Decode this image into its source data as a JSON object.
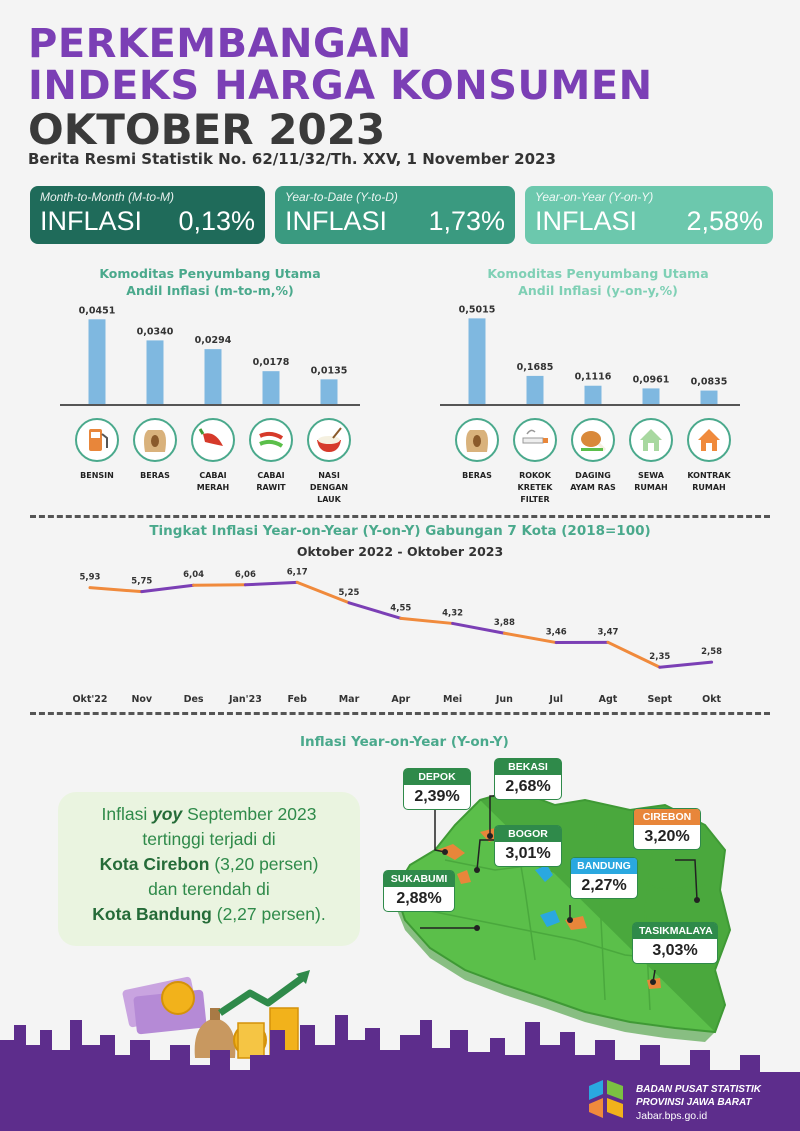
{
  "header": {
    "line1": "PERKEMBANGAN",
    "line2": "INDEKS HARGA KONSUMEN",
    "line3": "OKTOBER 2023",
    "subtitle": "Berita Resmi Statistik No. 62/11/32/Th. XXV, 1 November 2023"
  },
  "cards": [
    {
      "caption": "Month-to-Month (M-to-M)",
      "label": "INFLASI",
      "value": "0,13%",
      "color": "#1f6b5a"
    },
    {
      "caption": "Year-to-Date (Y-to-D)",
      "label": "INFLASI",
      "value": "1,73%",
      "color": "#3a9a80"
    },
    {
      "caption": "Year-on-Year (Y-on-Y)",
      "label": "INFLASI",
      "value": "2,58%",
      "color": "#6cc8ad"
    }
  ],
  "bar_left": {
    "title_line1": "Komoditas Penyumbang Utama",
    "title_line2": "Andil Inflasi (m-to-m,%)",
    "items": [
      {
        "label": [
          "BENSIN"
        ],
        "value_label": "0,0451",
        "icon": "fuel-pump-icon"
      },
      {
        "label": [
          "BERAS"
        ],
        "value_label": "0,0340",
        "icon": "rice-sack-icon"
      },
      {
        "label": [
          "CABAI",
          "MERAH"
        ],
        "value_label": "0,0294",
        "icon": "red-chili-icon"
      },
      {
        "label": [
          "CABAI",
          "RAWIT"
        ],
        "value_label": "0,0178",
        "icon": "bird-chili-icon"
      },
      {
        "label": [
          "NASI",
          "DENGAN",
          "LAUK"
        ],
        "value_label": "0,0135",
        "icon": "rice-bowl-icon"
      }
    ]
  },
  "bar_right": {
    "title_line1": "Komoditas Penyumbang Utama",
    "title_line2": "Andil Inflasi (y-on-y,%)",
    "items": [
      {
        "label": [
          "BERAS"
        ],
        "value_label": "0,5015",
        "icon": "rice-sack-icon"
      },
      {
        "label": [
          "ROKOK",
          "KRETEK",
          "FILTER"
        ],
        "value_label": "0,1685",
        "icon": "cigarette-icon"
      },
      {
        "label": [
          "DAGING",
          "AYAM RAS"
        ],
        "value_label": "0,1116",
        "icon": "chicken-meat-icon"
      },
      {
        "label": [
          "SEWA",
          "RUMAH"
        ],
        "value_label": "0,0961",
        "icon": "house-rent-icon"
      },
      {
        "label": [
          "KONTRAK",
          "RUMAH"
        ],
        "value_label": "0,0835",
        "icon": "house-contract-icon"
      }
    ]
  },
  "line_section": {
    "title": "Tingkat Inflasi Year-on-Year (Y-on-Y) Gabungan 7 Kota (2018=100)",
    "period": "Oktober 2022 -  Oktober 2023"
  },
  "map_section": {
    "title": "Inflasi Year-on-Year (Y-on-Y)",
    "note_line1": "Inflasi ",
    "note_em": "yoy",
    "note_line1b": " September 2023",
    "note_line2": "tertinggi terjadi di",
    "note_city_high": "Kota Cirebon",
    "note_val_high": " (3,20 persen)",
    "note_line4": "dan terendah di",
    "note_city_low": "Kota Bandung",
    "note_val_low": " (2,27 persen).",
    "cities": [
      {
        "name": "DEPOK",
        "value": "2,39%",
        "color": "#2f8a4a"
      },
      {
        "name": "BEKASI",
        "value": "2,68%",
        "color": "#2f8a4a"
      },
      {
        "name": "BOGOR",
        "value": "3,01%",
        "color": "#2f8a4a"
      },
      {
        "name": "CIREBON",
        "value": "3,20%",
        "color": "#e8863a"
      },
      {
        "name": "SUKABUMI",
        "value": "2,88%",
        "color": "#2f8a4a"
      },
      {
        "name": "BANDUNG",
        "value": "2,27%",
        "color": "#2aa8e0"
      },
      {
        "name": "TASIKMALAYA",
        "value": "3,03%",
        "color": "#2f8a4a"
      }
    ]
  },
  "footer": {
    "org_line1": "BADAN PUSAT STATISTIK",
    "org_line2": "PROVINSI JAWA BARAT",
    "url": "Jabar.bps.go.id"
  },
  "colors": {
    "purple": "#7b3fb5",
    "orange": "#f08a3c",
    "bar_blue": "#7fb8e0",
    "teal_title": "#4aa98c",
    "map_green": "#5bbf4a"
  },
  "chart_data": [
    {
      "type": "bar",
      "title": "Komoditas Penyumbang Utama Andil Inflasi (m-to-m,%)",
      "categories": [
        "BENSIN",
        "BERAS",
        "CABAI MERAH",
        "CABAI RAWIT",
        "NASI DENGAN LAUK"
      ],
      "values": [
        0.0451,
        0.034,
        0.0294,
        0.0178,
        0.0135
      ],
      "ylim": [
        0,
        0.05
      ]
    },
    {
      "type": "bar",
      "title": "Komoditas Penyumbang Utama Andil Inflasi (y-on-y,%)",
      "categories": [
        "BERAS",
        "ROKOK KRETEK FILTER",
        "DAGING AYAM RAS",
        "SEWA RUMAH",
        "KONTRAK RUMAH"
      ],
      "values": [
        0.5015,
        0.1685,
        0.1116,
        0.0961,
        0.0835
      ],
      "ylim": [
        0,
        0.55
      ]
    },
    {
      "type": "line",
      "title": "Tingkat Inflasi Year-on-Year (Y-on-Y) Gabungan 7 Kota (2018=100)",
      "subtitle": "Oktober 2022 -  Oktober 2023",
      "categories": [
        "Okt'22",
        "Nov",
        "Des",
        "Jan'23",
        "Feb",
        "Mar",
        "Apr",
        "Mei",
        "Jun",
        "Jul",
        "Agt",
        "Sept",
        "Okt"
      ],
      "values": [
        5.93,
        5.75,
        6.04,
        6.06,
        6.17,
        5.25,
        4.55,
        4.32,
        3.88,
        3.46,
        3.47,
        2.35,
        2.58
      ],
      "value_labels": [
        "5,93",
        "5,75",
        "6,04",
        "6,06",
        "6,17",
        "5,25",
        "4,55",
        "4,32",
        "3,88",
        "3,46",
        "3,47",
        "2,35",
        "2,58"
      ],
      "ylim": [
        2,
        6.5
      ]
    }
  ]
}
